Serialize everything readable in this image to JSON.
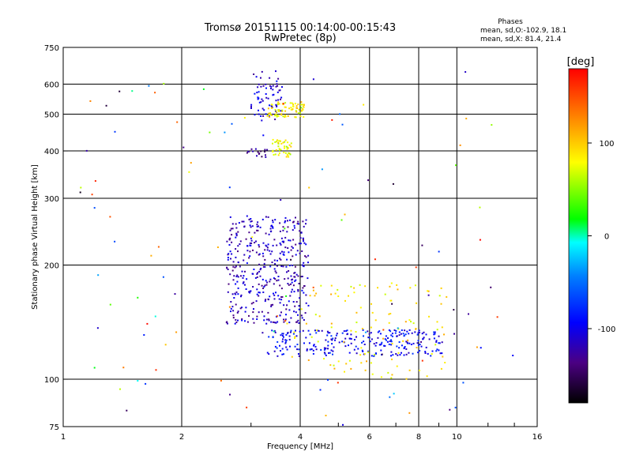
{
  "chart_data": {
    "type": "scatter",
    "title": "Tromsø 20151115 00:14:00-00:15:43",
    "subtitle": "RwPretec (8p)",
    "stats": {
      "heading": "Phases",
      "line1": "mean, sd,O:-102.9, 18.1",
      "line2": "mean, sd,X:  81.4, 21.4"
    },
    "xlabel": "Frequency [MHz]",
    "ylabel": "Stationary phase Virtual Height [km]",
    "xscale": "log",
    "yscale": "log",
    "xlim": [
      1,
      16
    ],
    "ylim": [
      75,
      750
    ],
    "xticks": [
      1,
      2,
      4,
      6,
      8,
      10,
      16
    ],
    "yticks": [
      75,
      100,
      200,
      300,
      400,
      500,
      600,
      750
    ],
    "grid": true,
    "colorbar": {
      "label": "[deg]",
      "range": [
        -180,
        180
      ],
      "ticks": [
        100,
        0,
        -100
      ]
    },
    "clusters": [
      {
        "name": "O-trace F-layer upper",
        "x_range": [
          3.0,
          3.6
        ],
        "y_range": [
          480,
          650
        ],
        "phase": -110,
        "count": 70
      },
      {
        "name": "X-trace F-layer upper",
        "x_range": [
          3.3,
          4.1
        ],
        "y_range": [
          490,
          540
        ],
        "phase": 85,
        "count": 80
      },
      {
        "name": "X-trace 400 km",
        "x_range": [
          3.4,
          3.8
        ],
        "y_range": [
          385,
          430
        ],
        "phase": 80,
        "count": 45
      },
      {
        "name": "O-trace 400 km",
        "x_range": [
          2.9,
          3.3
        ],
        "y_range": [
          385,
          405
        ],
        "phase": -140,
        "count": 18
      },
      {
        "name": "O-trace spread F",
        "x_range": [
          2.6,
          4.2
        ],
        "y_range": [
          140,
          270
        ],
        "phase": -115,
        "count": 420
      },
      {
        "name": "low-height trace",
        "x_range": [
          3.3,
          9.2
        ],
        "y_range": [
          115,
          135
        ],
        "phase": -95,
        "count": 260
      },
      {
        "name": "X-trace mixed",
        "x_range": [
          3.8,
          9.5
        ],
        "y_range": [
          100,
          180
        ],
        "phase": 90,
        "count": 110
      },
      {
        "name": "scattered echoes",
        "x_range": [
          1.1,
          14
        ],
        "y_range": [
          75,
          650
        ],
        "phase": 0,
        "count": 120
      }
    ]
  }
}
